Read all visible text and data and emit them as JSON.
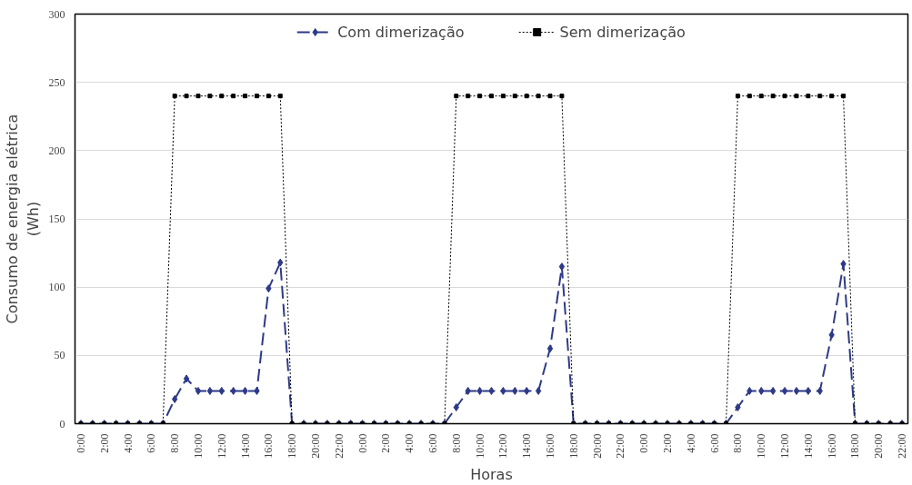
{
  "chart_data": {
    "type": "line",
    "xlabel": "Horas",
    "ylabel": "Consumo de energia elétrica\n(Wh)",
    "categories": [
      "0:00",
      null,
      "2:00",
      null,
      "4:00",
      null,
      "6:00",
      null,
      "8:00",
      null,
      "10:00",
      null,
      "12:00",
      null,
      "14:00",
      null,
      "16:00",
      null,
      "18:00",
      null,
      "20:00",
      null,
      "22:00",
      null,
      "0:00",
      null,
      "2:00",
      null,
      "4:00",
      null,
      "6:00",
      null,
      "8:00",
      null,
      "10:00",
      null,
      "12:00",
      null,
      "14:00",
      null,
      "16:00",
      null,
      "18:00",
      null,
      "20:00",
      null,
      "22:00",
      null,
      "0:00",
      null,
      "2:00",
      null,
      "4:00",
      null,
      "6:00",
      null,
      "8:00",
      null,
      "10:00",
      null,
      "12:00",
      null,
      "14:00",
      null,
      "16:00",
      null,
      "18:00",
      null,
      "20:00",
      null,
      "22:00"
    ],
    "series": [
      {
        "name": "Com dimerização",
        "color": "#2e3a87",
        "marker": "diamond",
        "line_style": "dashed",
        "values": [
          0,
          0,
          0,
          0,
          0,
          0,
          0,
          0,
          18,
          33,
          24,
          24,
          24,
          24,
          24,
          24,
          99,
          118,
          0,
          0,
          0,
          0,
          0,
          0,
          0,
          0,
          0,
          0,
          0,
          0,
          0,
          0,
          12,
          24,
          24,
          24,
          24,
          24,
          24,
          24,
          55,
          115,
          0,
          0,
          0,
          0,
          0,
          0,
          0,
          0,
          0,
          0,
          0,
          0,
          0,
          0,
          12,
          24,
          24,
          24,
          24,
          24,
          24,
          24,
          65,
          117,
          0,
          0,
          0,
          0,
          0
        ]
      },
      {
        "name": "Sem dimerização",
        "color": "#000000",
        "marker": "square",
        "line_style": "dotted",
        "values": [
          0,
          0,
          0,
          0,
          0,
          0,
          0,
          0,
          240,
          240,
          240,
          240,
          240,
          240,
          240,
          240,
          240,
          240,
          0,
          0,
          0,
          0,
          0,
          0,
          0,
          0,
          0,
          0,
          0,
          0,
          0,
          0,
          240,
          240,
          240,
          240,
          240,
          240,
          240,
          240,
          240,
          240,
          0,
          0,
          0,
          0,
          0,
          0,
          0,
          0,
          0,
          0,
          0,
          0,
          0,
          0,
          240,
          240,
          240,
          240,
          240,
          240,
          240,
          240,
          240,
          240,
          0,
          0,
          0,
          0,
          0
        ]
      }
    ],
    "ylim": [
      0,
      300
    ],
    "yticks": [
      0,
      50,
      100,
      150,
      200,
      250,
      300
    ],
    "grid": "y",
    "legend": "top"
  }
}
